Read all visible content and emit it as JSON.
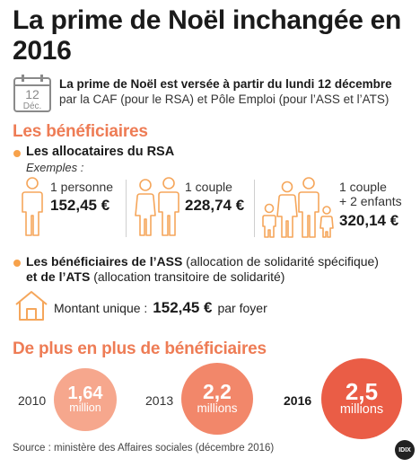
{
  "title": "La prime de Noël inchangée en 2016",
  "calendar": {
    "day": "12",
    "month": "Déc."
  },
  "date_info": {
    "line1": "La prime de Noël est versée à partir du lundi 12 décembre",
    "line2": "par la CAF (pour le RSA) et Pôle Emploi (pour l’ASS et l’ATS)"
  },
  "beneficiaries": {
    "heading": "Les bénéficiaires",
    "rsa": {
      "heading": "Les allocataires du RSA",
      "examples_label": "Exemples :",
      "cases": [
        {
          "label": "1 personne",
          "amount": "152,45 €"
        },
        {
          "label": "1 couple",
          "amount": "228,74 €"
        },
        {
          "label_line1": "1 couple",
          "label_line2": "+ 2 enfants",
          "amount": "320,14 €"
        }
      ]
    },
    "ass": {
      "line1_bold": "Les bénéficiaires de l’ASS",
      "line1_rest": " (allocation de solidarité spécifique)",
      "line2_bold": "et de l’ATS",
      "line2_rest": " (allocation transitoire de solidarité)"
    },
    "flat": {
      "label": "Montant unique :",
      "amount": "152,45 €",
      "suffix": "par foyer"
    }
  },
  "growth": {
    "heading": "De plus en plus de bénéficiaires",
    "items": [
      {
        "year": "2010",
        "value": "1,64",
        "unit": "million",
        "color": "#f6a78d"
      },
      {
        "year": "2013",
        "value": "2,2",
        "unit": "millions",
        "color": "#f2876a"
      },
      {
        "year": "2016",
        "value": "2,5",
        "unit": "millions",
        "color": "#ea5d46"
      }
    ]
  },
  "source": "Source : ministère des Affaires sociales (décembre 2016)",
  "logo": "IDIX",
  "colors": {
    "accent": "#ee7c55",
    "icon": "#f5a65b",
    "bullet": "#f7a24b"
  }
}
